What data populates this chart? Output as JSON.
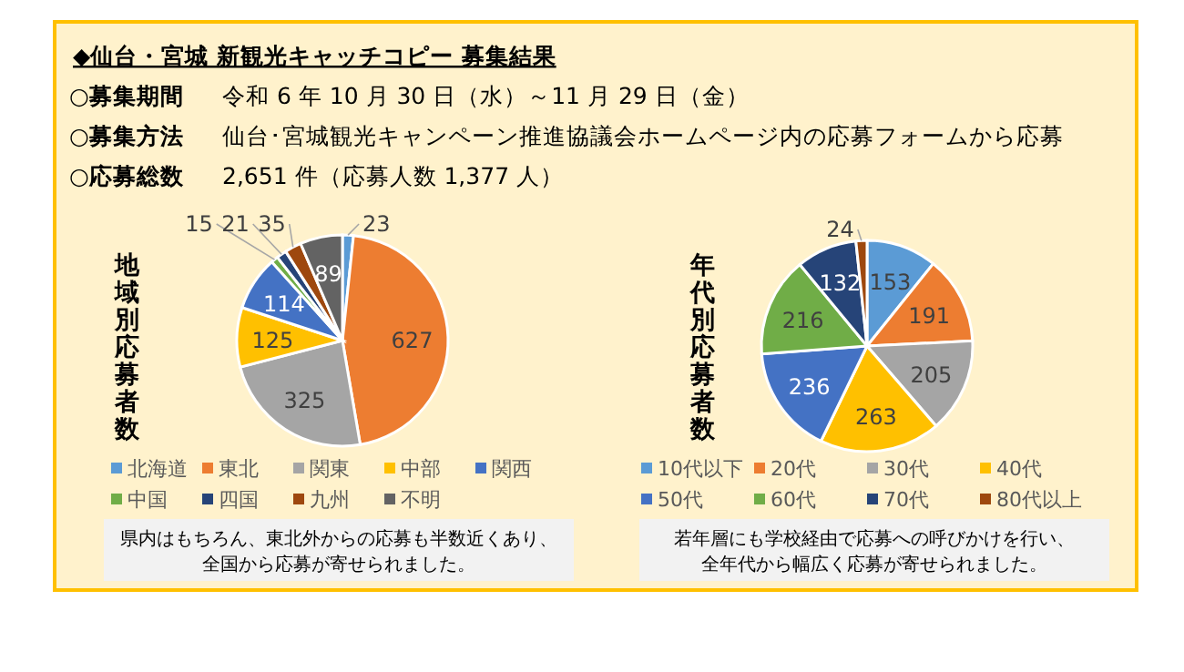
{
  "chart_data": [
    {
      "type": "other",
      "title": "◆仙台・宮城  新観光キャッチコピー  募集結果",
      "annotations": [
        "○募集期間",
        "令和 6 年 10 月 30 日（水）～11 月 29 日（金）",
        "○募集方法",
        "仙台･宮城観光キャンペーン推進協議会ホームページ内の応募フォームから応募",
        "○応募総数",
        "2,651 件（応募人数 1,377 人）"
      ]
    },
    {
      "type": "pie",
      "title": "地域別応募者数",
      "categories": [
        "北海道",
        "東北",
        "関東",
        "中部",
        "関西",
        "中国",
        "四国",
        "九州",
        "不明"
      ],
      "values": [
        23,
        627,
        325,
        125,
        114,
        15,
        21,
        35,
        89
      ],
      "colors": [
        "#5b9bd5",
        "#ed7d31",
        "#a5a5a5",
        "#ffc000",
        "#4472c4",
        "#70ad47",
        "#264478",
        "#9e480e",
        "#636363"
      ],
      "data_labels": true,
      "legend": "bottom",
      "annotations": [
        "県内はもちろん、東北外からの応募も半数近くあり、",
        "全国から応募が寄せられました。"
      ]
    },
    {
      "type": "pie",
      "title": "年代別応募者数",
      "categories": [
        "10代以下",
        "20代",
        "30代",
        "40代",
        "50代",
        "60代",
        "70代",
        "80代以上"
      ],
      "values": [
        153,
        191,
        205,
        263,
        236,
        216,
        132,
        24
      ],
      "colors": [
        "#5b9bd5",
        "#ed7d31",
        "#a5a5a5",
        "#ffc000",
        "#4472c4",
        "#70ad47",
        "#264478",
        "#9e480e"
      ],
      "data_labels": true,
      "legend": "bottom",
      "annotations": [
        "若年層にも学校経由で応募への呼びかけを行い、",
        "全年代から幅広く応募が寄せられました。"
      ]
    }
  ]
}
